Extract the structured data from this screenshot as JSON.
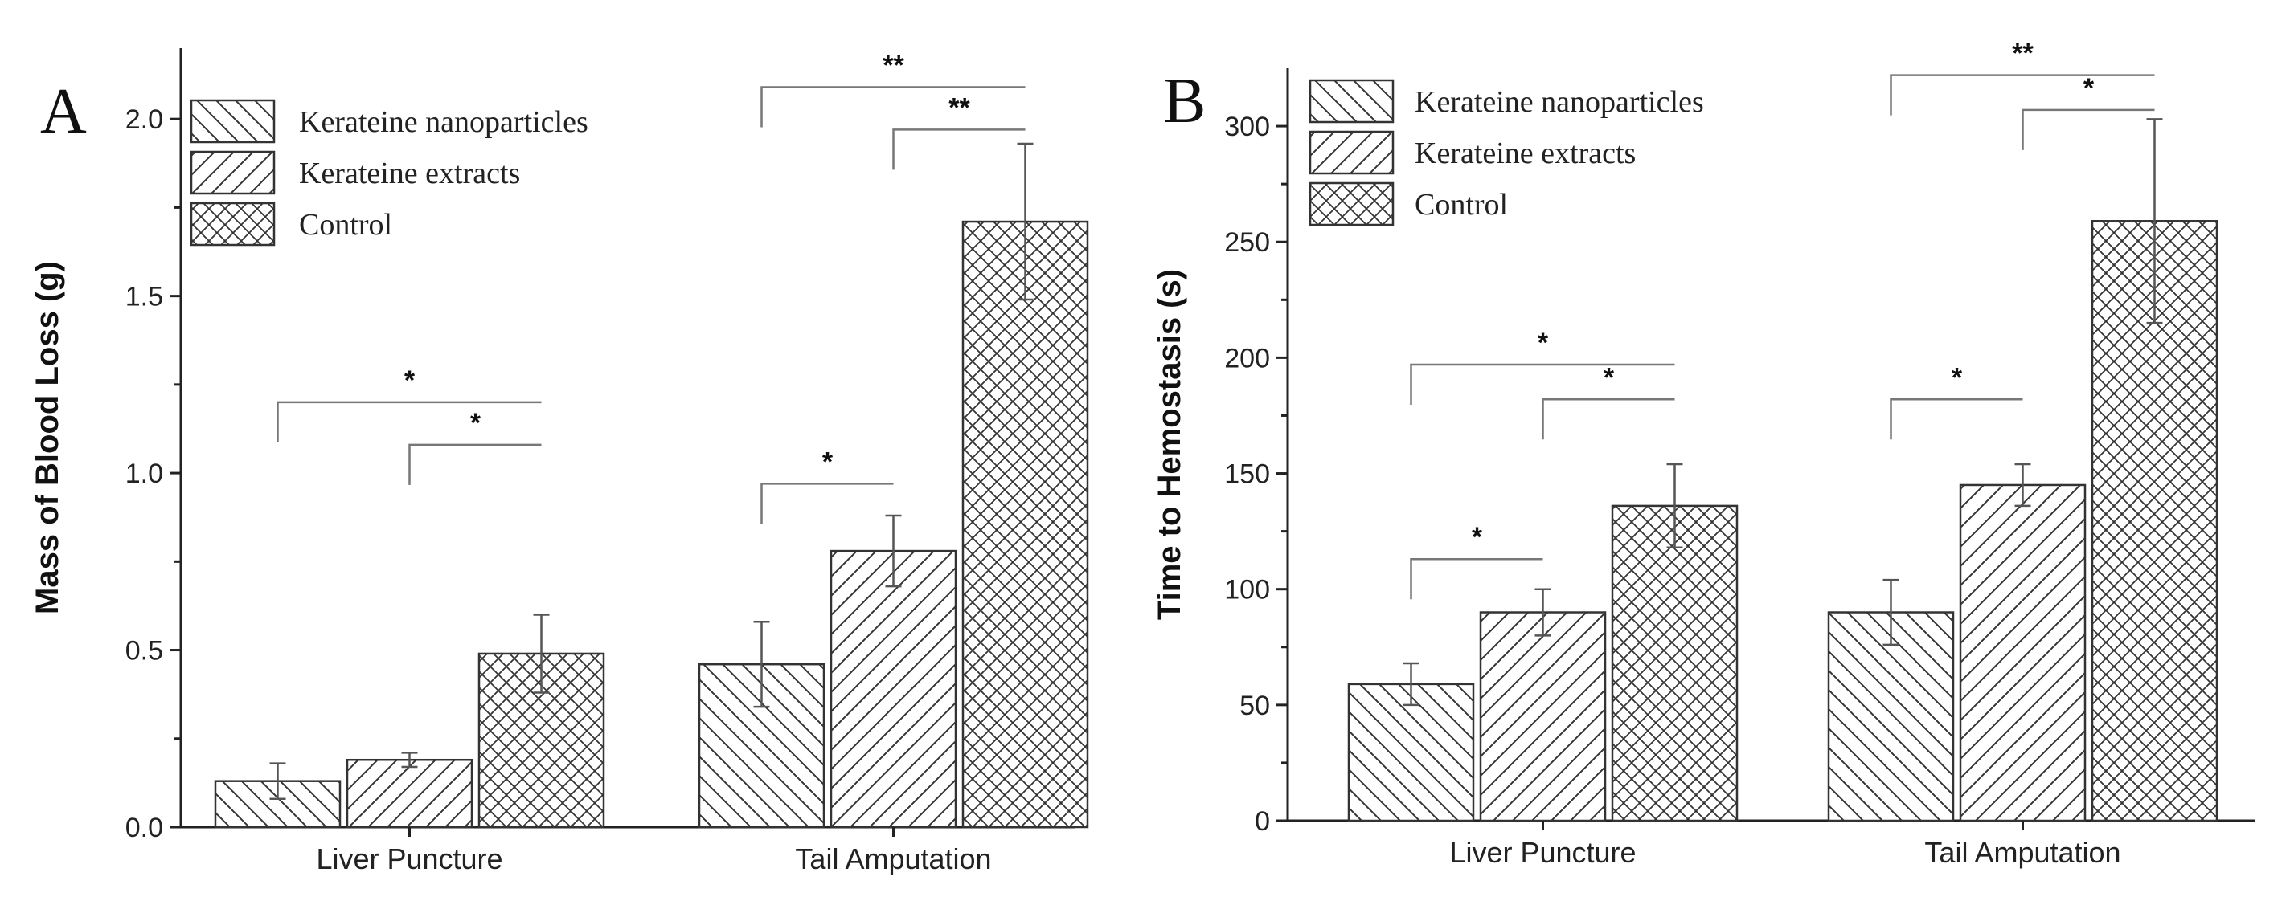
{
  "chart_data": [
    {
      "type": "bar",
      "panel_label": "A",
      "ylabel": "Mass of Blood Loss (g)",
      "xlabel": "",
      "ylim": [
        0,
        2.2
      ],
      "yticks": [
        0.0,
        0.5,
        1.0,
        1.5,
        2.0
      ],
      "ytick_labels": [
        "0.0",
        "0.5",
        "1.0",
        "1.5",
        "2.0"
      ],
      "categories": [
        "Liver Puncture",
        "Tail Amputation"
      ],
      "series": [
        {
          "name": "Kerateine nanoparticles",
          "pattern": "hatch-back",
          "values": [
            0.13,
            0.46
          ],
          "errors": [
            0.05,
            0.12
          ]
        },
        {
          "name": "Kerateine extracts",
          "pattern": "hatch-fwd",
          "values": [
            0.19,
            0.78
          ],
          "errors": [
            0.02,
            0.1
          ]
        },
        {
          "name": "Control",
          "pattern": "crosshatch",
          "values": [
            0.49,
            1.71
          ],
          "errors": [
            0.11,
            0.22
          ]
        }
      ],
      "legend_position": "top-left",
      "significance": [
        {
          "category": 0,
          "from": 0,
          "to": 2,
          "y": 1.2,
          "label": "*"
        },
        {
          "category": 0,
          "from": 1,
          "to": 2,
          "y": 1.08,
          "label": "*"
        },
        {
          "category": 1,
          "from": 0,
          "to": 1,
          "y": 0.97,
          "label": "*"
        },
        {
          "category": 1,
          "from": 0,
          "to": 2,
          "y": 2.09,
          "label": "**"
        },
        {
          "category": 1,
          "from": 1,
          "to": 2,
          "y": 1.97,
          "label": "**"
        }
      ]
    },
    {
      "type": "bar",
      "panel_label": "B",
      "ylabel": "Time to Hemostasis (s)",
      "xlabel": "",
      "ylim": [
        0,
        325
      ],
      "yticks": [
        0,
        50,
        100,
        150,
        200,
        250,
        300
      ],
      "ytick_labels": [
        "0",
        "50",
        "100",
        "150",
        "200",
        "250",
        "300"
      ],
      "categories": [
        "Liver Puncture",
        "Tail Amputation"
      ],
      "series": [
        {
          "name": "Kerateine nanoparticles",
          "pattern": "hatch-back",
          "values": [
            59,
            90
          ],
          "errors": [
            9,
            14
          ]
        },
        {
          "name": "Kerateine extracts",
          "pattern": "hatch-fwd",
          "values": [
            90,
            145
          ],
          "errors": [
            10,
            9
          ]
        },
        {
          "name": "Control",
          "pattern": "crosshatch",
          "values": [
            136,
            259
          ],
          "errors": [
            18,
            44
          ]
        }
      ],
      "legend_position": "top-left",
      "significance": [
        {
          "category": 0,
          "from": 0,
          "to": 1,
          "y": 113,
          "label": "*"
        },
        {
          "category": 0,
          "from": 0,
          "to": 2,
          "y": 197,
          "label": "*"
        },
        {
          "category": 0,
          "from": 1,
          "to": 2,
          "y": 182,
          "label": "*"
        },
        {
          "category": 1,
          "from": 0,
          "to": 1,
          "y": 182,
          "label": "*"
        },
        {
          "category": 1,
          "from": 0,
          "to": 2,
          "y": 322,
          "label": "**"
        },
        {
          "category": 1,
          "from": 1,
          "to": 2,
          "y": 307,
          "label": "*"
        }
      ]
    }
  ]
}
